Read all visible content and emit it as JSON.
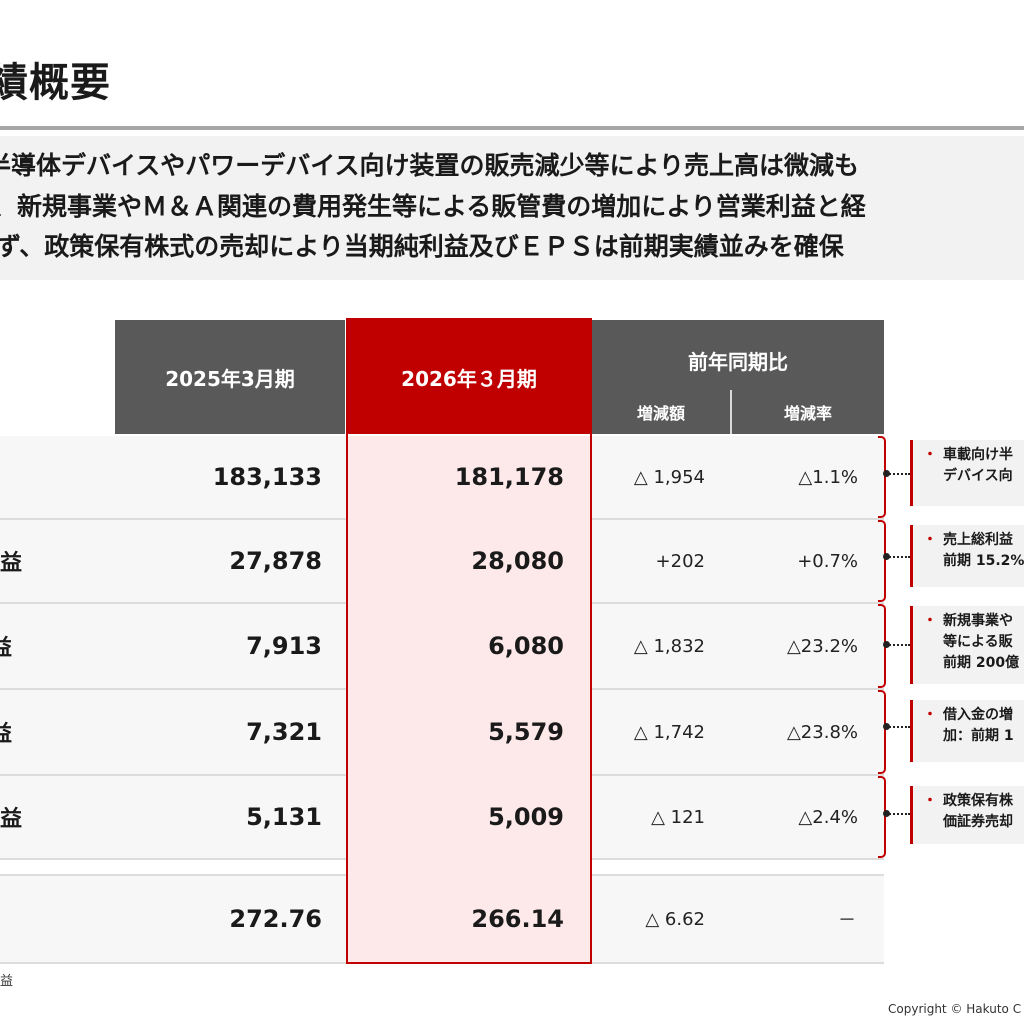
{
  "page": {
    "title": "績概要"
  },
  "summary": {
    "lines": [
      "半導体デバイスやパワーデバイス向け装置の販売減少等により売上高は微減も",
      "、新規事業やＭ＆Ａ関連の費用発生等による販管費の増加により営業利益と経",
      "ず、政策保有株式の売却により当期純利益及びＥＰＳは前期実績並みを確保"
    ]
  },
  "table": {
    "headers": {
      "prev_period": "2025年3月期",
      "curr_period": "2026年３月期",
      "yoy_group": "前年同期比",
      "change_amount": "増減額",
      "change_rate": "増減率"
    },
    "rows": [
      {
        "label": "",
        "prev": "183,133",
        "curr": "181,178",
        "change": "△ 1,954",
        "rate": "△1.1%"
      },
      {
        "label": "益",
        "prev": "27,878",
        "curr": "28,080",
        "change": "+202",
        "rate": "+0.7%"
      },
      {
        "label": "益",
        "prev": "7,913",
        "curr": "6,080",
        "change": "△ 1,832",
        "rate": "△23.2%"
      },
      {
        "label": "益",
        "prev": "7,321",
        "curr": "5,579",
        "change": "△ 1,742",
        "rate": "△23.8%"
      },
      {
        "label": "益",
        "prev": "5,131",
        "curr": "5,009",
        "change": "△ 121",
        "rate": "△2.4%"
      },
      {
        "label": "",
        "prev": "272.76",
        "curr": "266.14",
        "change": "△ 6.62",
        "rate": "－"
      }
    ]
  },
  "notes": {
    "bullet": "・",
    "items": [
      {
        "lines": [
          "車載向け半",
          "デバイス向"
        ]
      },
      {
        "lines": [
          "売上総利益",
          "前期 15.2%"
        ]
      },
      {
        "lines": [
          "新規事業や",
          "等による販",
          "前期 200億"
        ]
      },
      {
        "lines": [
          "借入金の増",
          "加：前期 1"
        ]
      },
      {
        "lines": [
          "政策保有株",
          "価証券売却"
        ]
      }
    ]
  },
  "footnote": "益",
  "copyright": "Copyright © Hakuto C",
  "colors": {
    "accent_red": "#c00000",
    "header_gray": "#595959",
    "highlight_pink": "#fde9ea"
  }
}
